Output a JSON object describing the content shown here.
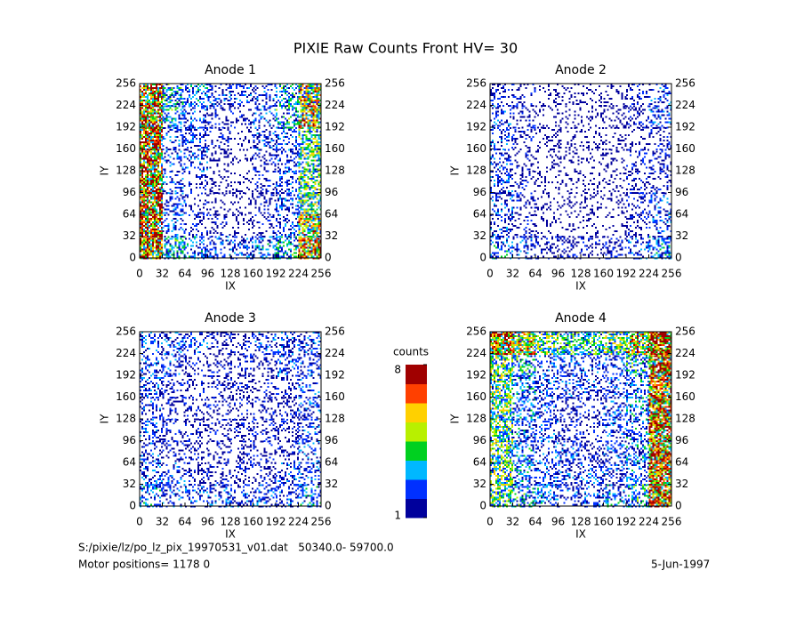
{
  "title": "PIXIE Raw Counts Front HV= 30",
  "footer": {
    "file": "S:/pixie/lz/po_lz_pix_19970531_v01.dat   50340.0- 59700.0",
    "motor": "Motor positions= 1178 0",
    "date": "5-Jun-1997"
  },
  "colorbar": {
    "label": "counts",
    "lim": [
      1,
      8
    ],
    "ticks": [
      1,
      8
    ],
    "colormap": [
      "#00009c",
      "#0030ff",
      "#00b8ff",
      "#00d020",
      "#b8f000",
      "#ffd000",
      "#ff4000",
      "#a00000"
    ]
  },
  "chart_data": [
    {
      "type": "heatmap",
      "title": "Anode 1",
      "xlabel": "IX",
      "ylabel": "IY",
      "xlim": [
        0,
        256
      ],
      "ylim": [
        0,
        256
      ],
      "xticks": [
        0,
        32,
        64,
        96,
        128,
        160,
        192,
        224,
        256
      ],
      "yticks": [
        0,
        32,
        64,
        96,
        128,
        160,
        192,
        224,
        256
      ],
      "z": [
        [
          6,
          3,
          2.5,
          2,
          2,
          2.5,
          3,
          6
        ],
        [
          6,
          2,
          1.5,
          1.5,
          1,
          1.5,
          2,
          5
        ],
        [
          6,
          2,
          1.5,
          1,
          1,
          1.5,
          2,
          4
        ],
        [
          6,
          2,
          1.5,
          1,
          1,
          1.5,
          2,
          4
        ],
        [
          6,
          2,
          2,
          1,
          1,
          1.5,
          2,
          4
        ],
        [
          6,
          2,
          2,
          1.5,
          1,
          2,
          2,
          4
        ],
        [
          6,
          3,
          2,
          1.5,
          1.5,
          2,
          3,
          5
        ],
        [
          6,
          3,
          2.5,
          2,
          2,
          2,
          3,
          5
        ]
      ]
    },
    {
      "type": "heatmap",
      "title": "Anode 2",
      "xlabel": "IX",
      "ylabel": "IY",
      "xlim": [
        0,
        256
      ],
      "ylim": [
        0,
        256
      ],
      "xticks": [
        0,
        32,
        64,
        96,
        128,
        160,
        192,
        224,
        256
      ],
      "yticks": [
        0,
        32,
        64,
        96,
        128,
        160,
        192,
        224,
        256
      ],
      "z": [
        [
          2.5,
          2,
          1.5,
          1.5,
          1.5,
          1.5,
          2,
          2.5
        ],
        [
          2,
          1.5,
          1,
          1,
          1,
          1,
          1.5,
          2
        ],
        [
          2,
          1.5,
          1,
          1,
          1,
          1,
          1.5,
          2
        ],
        [
          2,
          1.5,
          1,
          1,
          1,
          1,
          1.5,
          1.5
        ],
        [
          2,
          1.5,
          1,
          1,
          1,
          1,
          1.5,
          1.5
        ],
        [
          2,
          1.5,
          1,
          1,
          1,
          1,
          1,
          1.5
        ],
        [
          2,
          1.5,
          1,
          1,
          1,
          1,
          1.5,
          2
        ],
        [
          1.5,
          1.5,
          1,
          1,
          1,
          1,
          1.5,
          2
        ]
      ]
    },
    {
      "type": "heatmap",
      "title": "Anode 3",
      "xlabel": "IX",
      "ylabel": "IY",
      "xlim": [
        0,
        256
      ],
      "ylim": [
        0,
        256
      ],
      "xticks": [
        0,
        32,
        64,
        96,
        128,
        160,
        192,
        224,
        256
      ],
      "yticks": [
        0,
        32,
        64,
        96,
        128,
        160,
        192,
        224,
        256
      ],
      "z": [
        [
          2.5,
          2,
          2,
          2,
          2,
          2,
          2,
          2.5
        ],
        [
          2,
          2,
          1.5,
          1.5,
          1.5,
          1.5,
          2,
          2
        ],
        [
          2,
          1.5,
          1.5,
          1.5,
          1.5,
          1.5,
          1.5,
          2
        ],
        [
          2,
          1.5,
          1.5,
          1.5,
          1.5,
          1.5,
          1.5,
          2
        ],
        [
          2,
          1.5,
          1.5,
          1.5,
          1.5,
          1.5,
          1.5,
          2
        ],
        [
          2,
          1.5,
          1.5,
          1.5,
          1.5,
          1.5,
          1.5,
          2
        ],
        [
          2,
          2,
          1.5,
          1.5,
          1.5,
          1.5,
          2,
          2
        ],
        [
          2,
          2,
          2,
          1.5,
          1.5,
          2,
          2,
          2
        ]
      ]
    },
    {
      "type": "heatmap",
      "title": "Anode 4",
      "xlabel": "IX",
      "ylabel": "IY",
      "xlim": [
        0,
        256
      ],
      "ylim": [
        0,
        256
      ],
      "xticks": [
        0,
        32,
        64,
        96,
        128,
        160,
        192,
        224,
        256
      ],
      "yticks": [
        0,
        32,
        64,
        96,
        128,
        160,
        192,
        224,
        256
      ],
      "z": [
        [
          4,
          3,
          2.5,
          2,
          2,
          2.5,
          3,
          6
        ],
        [
          4,
          2.5,
          2,
          2,
          2,
          2,
          2.5,
          6
        ],
        [
          4,
          2.5,
          2,
          2,
          1.5,
          2,
          2.5,
          6
        ],
        [
          4,
          2.5,
          2,
          1.5,
          1.5,
          2,
          2.5,
          6
        ],
        [
          4,
          2.5,
          2,
          1.5,
          1.5,
          2,
          2.5,
          6
        ],
        [
          4,
          2.5,
          2,
          2,
          2,
          2,
          2.5,
          6
        ],
        [
          4,
          3,
          2,
          2,
          2,
          2,
          3,
          6
        ],
        [
          6,
          5,
          4,
          3.5,
          3.5,
          4,
          5,
          7
        ]
      ]
    }
  ]
}
